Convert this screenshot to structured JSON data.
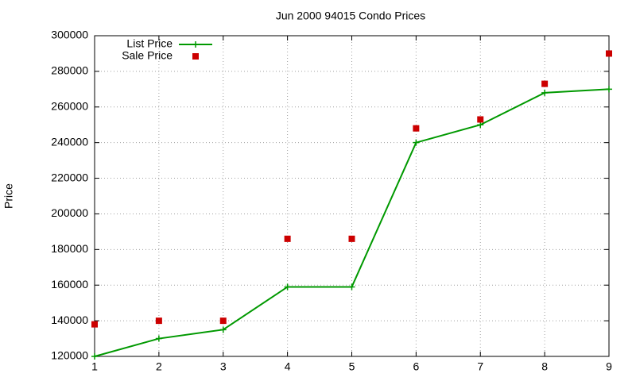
{
  "chart_data": {
    "type": "line",
    "title": "Jun 2000 94015 Condo Prices",
    "y_label": "Price",
    "x": [
      1,
      2,
      3,
      4,
      5,
      6,
      7,
      8,
      9
    ],
    "series": [
      {
        "name": "List Price",
        "color": "#009900",
        "line": true,
        "marker": "plus",
        "values": [
          120000,
          130000,
          135000,
          159000,
          159000,
          240000,
          250000,
          268000,
          270000
        ]
      },
      {
        "name": "Sale Price",
        "color": "#cc0000",
        "line": false,
        "marker": "square",
        "values": [
          138000,
          140000,
          140000,
          186000,
          186000,
          248000,
          253000,
          273000,
          290000
        ]
      }
    ],
    "xlim": [
      1,
      9
    ],
    "xticks": [
      1,
      2,
      3,
      4,
      5,
      6,
      7,
      8,
      9
    ],
    "ylim": [
      120000,
      300000
    ],
    "yticks": [
      120000,
      140000,
      160000,
      180000,
      200000,
      220000,
      240000,
      260000,
      280000,
      300000
    ],
    "grid": true,
    "legend": "top-left"
  }
}
